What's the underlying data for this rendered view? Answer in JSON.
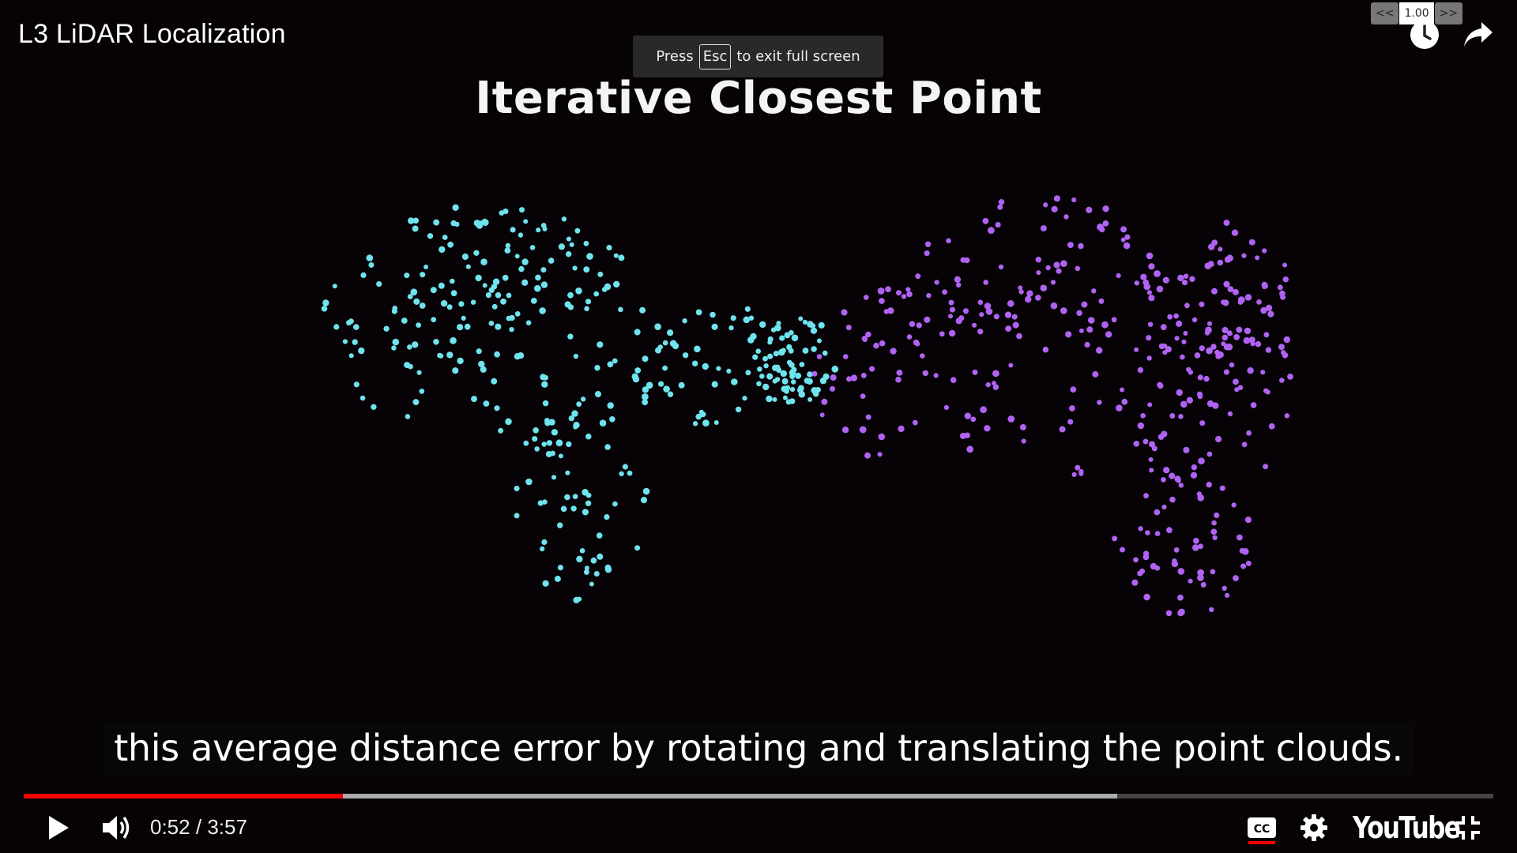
{
  "player": {
    "video_title": "L3 LiDAR Localization",
    "fullscreen_toast": {
      "prefix": "Press",
      "key": "Esc",
      "suffix": "to exit full screen"
    },
    "speed_control": {
      "slower": "<<",
      "value": "1.00",
      "faster": ">>"
    },
    "slide_title": "Iterative Closest Point",
    "caption": "this average distance error by rotating and translating the point clouds.",
    "progress": {
      "played_fraction": 0.217,
      "buffered_fraction": 0.744
    },
    "time": {
      "current": "0:52",
      "duration": "3:57",
      "separator": "/"
    },
    "logo": "YouTube",
    "colors": {
      "source_cloud": "#6fe3ee",
      "target_cloud": "#b063f2",
      "progress_played": "#ff0000"
    }
  }
}
